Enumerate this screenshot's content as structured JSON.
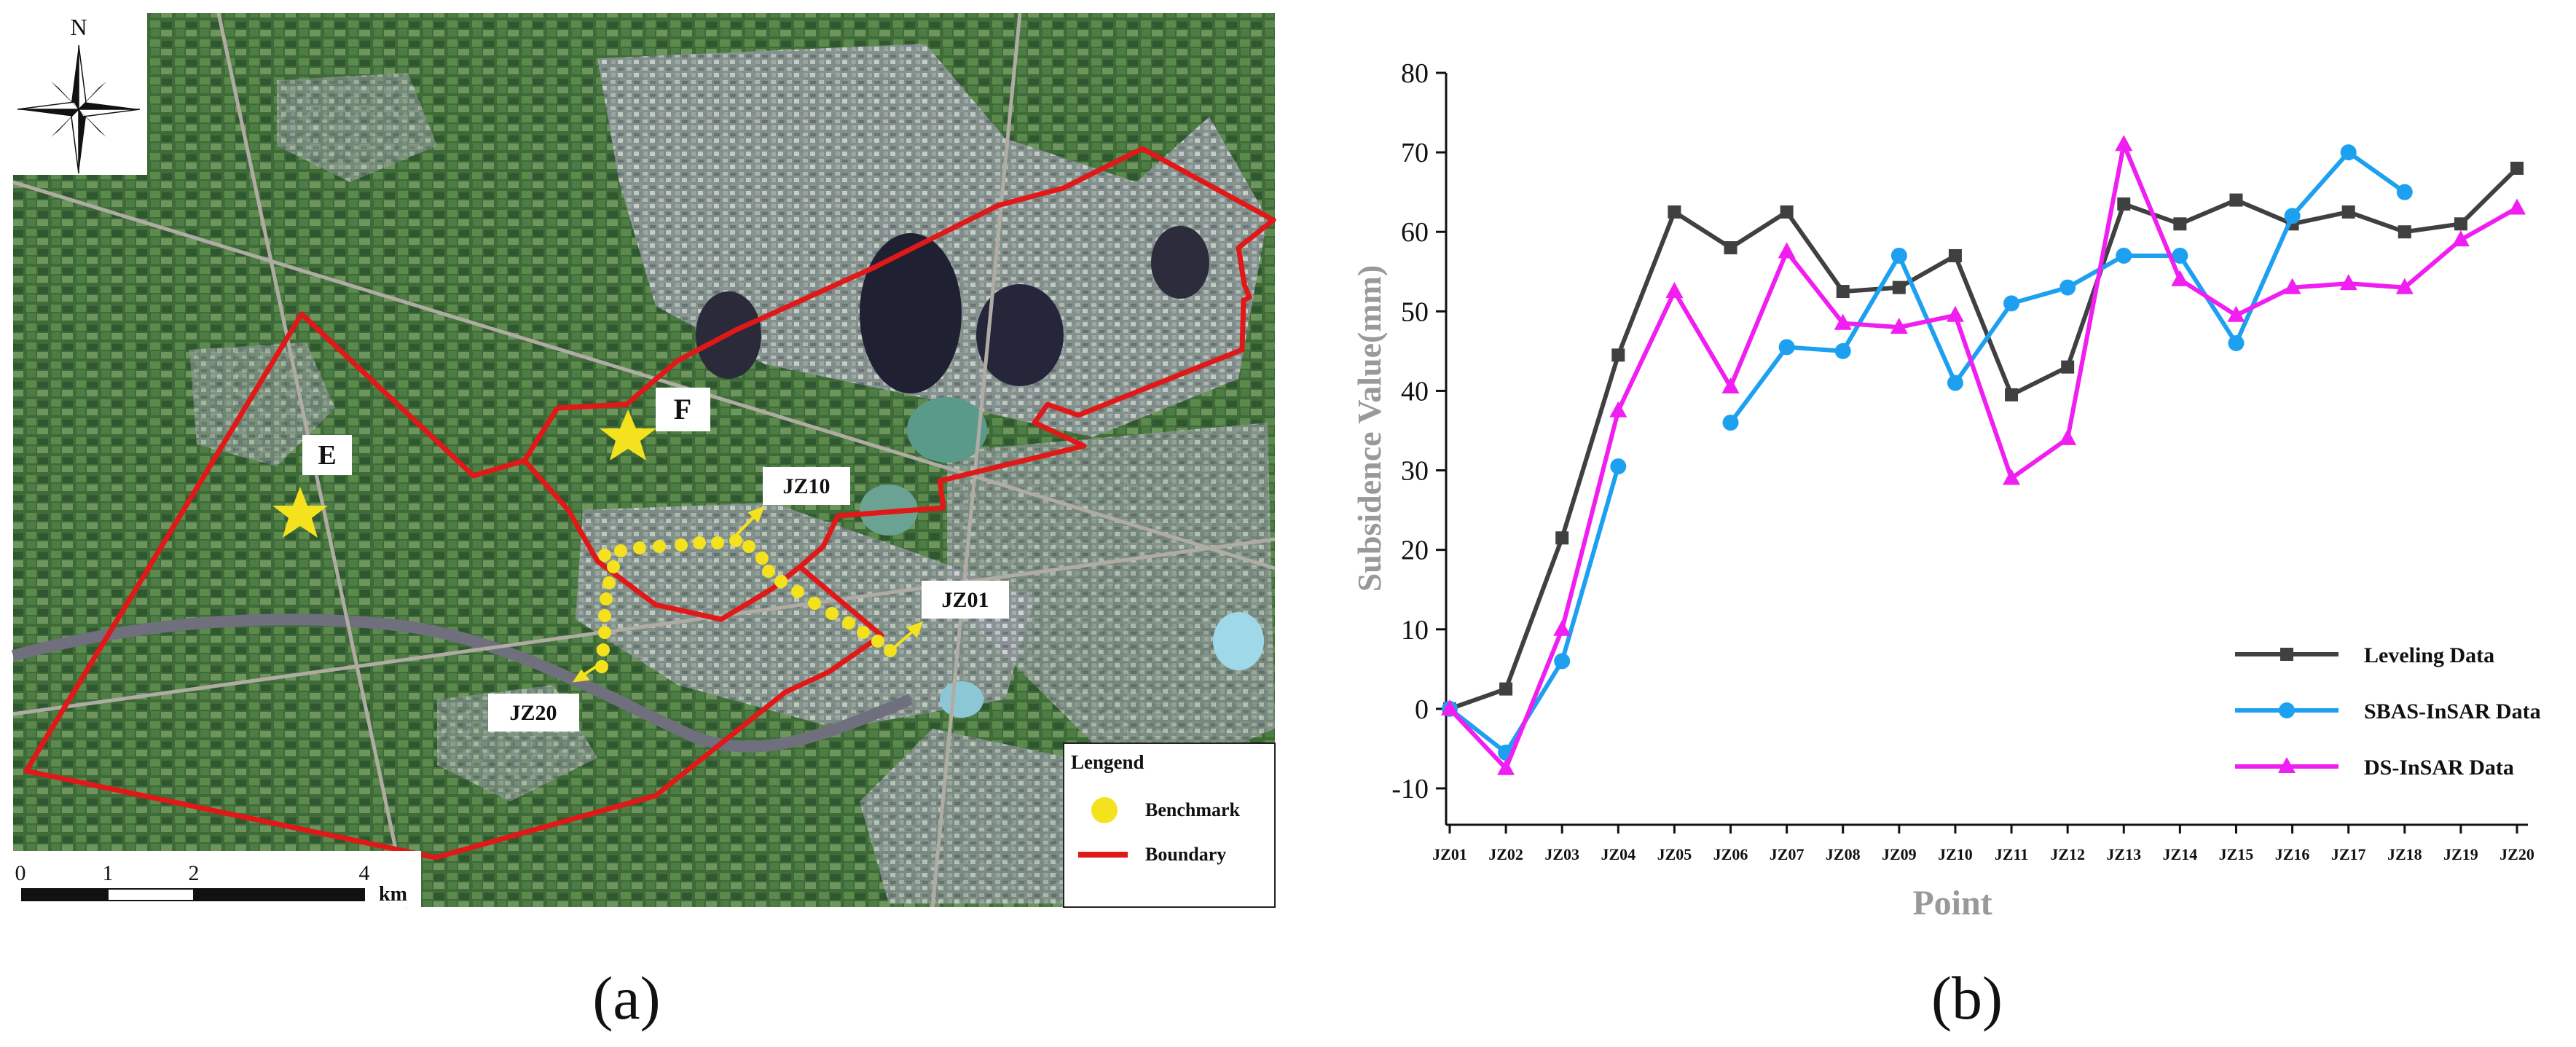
{
  "panel_a": {
    "caption": "(a)",
    "north": "N",
    "point_e": "E",
    "point_f": "F",
    "labels": {
      "jz10": "JZ10",
      "jz01": "JZ01",
      "jz20": "JZ20"
    },
    "legend": {
      "title": "Lengend",
      "benchmark": "Benchmark",
      "boundary": "Boundary"
    },
    "scalebar": {
      "ticks": [
        "0",
        "1",
        "2",
        "4"
      ],
      "unit": "km"
    }
  },
  "panel_b": {
    "caption": "(b)"
  },
  "chart_data": {
    "type": "line",
    "xlabel": "Point",
    "ylabel": "Subsidence Value(mm)",
    "ylim": [
      -10,
      80
    ],
    "yticks": [
      -10,
      0,
      10,
      20,
      30,
      40,
      50,
      60,
      70,
      80
    ],
    "categories": [
      "JZ01",
      "JZ02",
      "JZ03",
      "JZ04",
      "JZ05",
      "JZ06",
      "JZ07",
      "JZ08",
      "JZ09",
      "JZ10",
      "JZ11",
      "JZ12",
      "JZ13",
      "JZ14",
      "JZ15",
      "JZ16",
      "JZ17",
      "JZ18",
      "JZ19",
      "JZ20"
    ],
    "legend_position": "bottom-right",
    "series": [
      {
        "name": "Leveling Data",
        "color": "#404040",
        "marker": "square",
        "values": [
          0,
          2.5,
          21.5,
          44.5,
          62.5,
          58,
          62.5,
          52.5,
          53,
          57,
          39.5,
          43,
          63.5,
          61,
          64,
          61,
          62.5,
          60,
          61,
          68
        ]
      },
      {
        "name": "SBAS-InSAR Data",
        "color": "#1ea0f0",
        "marker": "circle",
        "values": [
          0,
          -5.5,
          6,
          30.5,
          null,
          36,
          45.5,
          45,
          57,
          41,
          51,
          53,
          57,
          57,
          46,
          62,
          70,
          65,
          null,
          null
        ]
      },
      {
        "name": "DS-InSAR Data",
        "color": "#f01ef0",
        "marker": "triangle",
        "values": [
          0,
          -7.5,
          10,
          37.5,
          52.5,
          40.5,
          57.5,
          48.5,
          48,
          49.5,
          29,
          34,
          71,
          54,
          49.5,
          53,
          53.5,
          53,
          59,
          63
        ]
      }
    ]
  }
}
